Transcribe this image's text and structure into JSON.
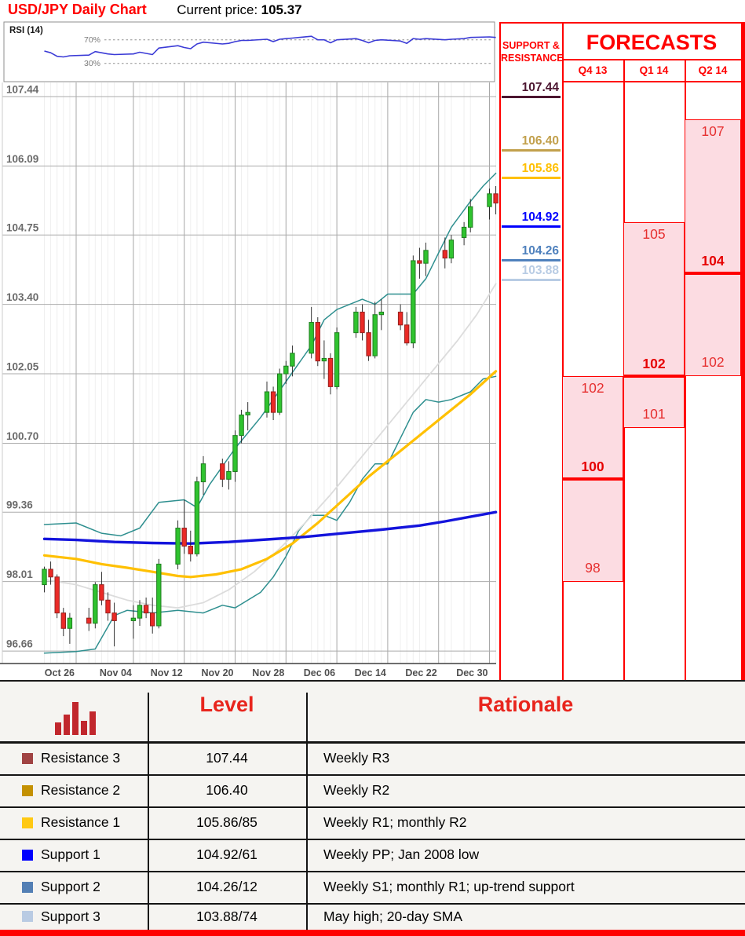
{
  "header": {
    "title": "USD/JPY Daily Chart",
    "current_price_label": "Current price:",
    "current_price": "105.37"
  },
  "rsi_panel": {
    "label": "RSI (14)",
    "upper_label": "70%",
    "lower_label": "30%"
  },
  "chart_data": {
    "type": "candlestick",
    "title": "USD/JPY Daily Chart",
    "ylim": [
      96.0,
      107.44
    ],
    "y_axis_labels": [
      "107.44",
      "106.09",
      "104.75",
      "103.40",
      "102.05",
      "100.70",
      "99.36",
      "98.01",
      "96.66"
    ],
    "x_axis_labels": [
      "Oct 26",
      "Nov 04",
      "Nov 12",
      "Nov 20",
      "Nov 28",
      "Dec 06",
      "Dec 14",
      "Dec 22",
      "Dec 30"
    ],
    "candles": [
      [
        "Oct 21",
        97.95,
        98.3,
        97.8,
        98.25
      ],
      [
        "Oct 22",
        98.25,
        98.4,
        97.95,
        98.1
      ],
      [
        "Oct 23",
        98.1,
        98.15,
        97.3,
        97.4
      ],
      [
        "Oct 24",
        97.4,
        97.5,
        96.95,
        97.1
      ],
      [
        "Oct 25",
        97.1,
        97.4,
        96.8,
        97.3
      ],
      [
        "Oct 28",
        97.3,
        97.5,
        97.05,
        97.2
      ],
      [
        "Oct 29",
        97.2,
        98.0,
        97.1,
        97.95
      ],
      [
        "Oct 30",
        97.95,
        98.2,
        97.55,
        97.65
      ],
      [
        "Oct 31",
        97.65,
        97.8,
        97.25,
        97.4
      ],
      [
        "Nov 01",
        97.4,
        97.6,
        96.75,
        97.25
      ],
      [
        "Nov 04",
        97.25,
        97.55,
        96.9,
        97.3
      ],
      [
        "Nov 05",
        97.3,
        97.65,
        97.15,
        97.55
      ],
      [
        "Nov 06",
        97.55,
        97.7,
        97.3,
        97.4
      ],
      [
        "Nov 07",
        97.4,
        97.7,
        97.0,
        97.15
      ],
      [
        "Nov 08",
        97.15,
        98.45,
        97.1,
        98.35
      ],
      [
        "Nov 11",
        98.35,
        99.2,
        98.25,
        99.05
      ],
      [
        "Nov 12",
        99.05,
        99.6,
        98.55,
        98.7
      ],
      [
        "Nov 13",
        98.7,
        99.0,
        98.4,
        98.55
      ],
      [
        "Nov 14",
        98.55,
        100.05,
        98.5,
        99.95
      ],
      [
        "Nov 15",
        99.95,
        100.45,
        99.7,
        100.3
      ],
      [
        "Nov 18",
        100.3,
        100.4,
        99.85,
        100.0
      ],
      [
        "Nov 19",
        100.0,
        100.35,
        99.8,
        100.15
      ],
      [
        "Nov 20",
        100.15,
        100.95,
        99.95,
        100.85
      ],
      [
        "Nov 21",
        100.85,
        101.35,
        100.7,
        101.25
      ],
      [
        "Nov 22",
        101.25,
        101.5,
        100.95,
        101.3
      ],
      [
        "Nov 25",
        101.3,
        101.9,
        101.2,
        101.7
      ],
      [
        "Nov 26",
        101.7,
        101.8,
        101.15,
        101.3
      ],
      [
        "Nov 27",
        101.3,
        102.15,
        101.25,
        102.05
      ],
      [
        "Nov 28",
        102.05,
        102.3,
        101.85,
        102.2
      ],
      [
        "Nov 29",
        102.2,
        102.6,
        102.0,
        102.45
      ],
      [
        "Dec 02",
        102.45,
        103.35,
        102.35,
        103.05
      ],
      [
        "Dec 03",
        103.05,
        103.15,
        102.2,
        102.3
      ],
      [
        "Dec 04",
        102.3,
        102.7,
        101.95,
        102.35
      ],
      [
        "Dec 05",
        102.35,
        102.45,
        101.65,
        101.8
      ],
      [
        "Dec 06",
        101.8,
        102.95,
        101.75,
        102.85
      ],
      [
        "Dec 09",
        102.85,
        103.35,
        102.75,
        103.25
      ],
      [
        "Dec 10",
        103.25,
        103.4,
        102.7,
        102.85
      ],
      [
        "Dec 11",
        102.85,
        103.1,
        102.3,
        102.4
      ],
      [
        "Dec 12",
        102.4,
        103.45,
        102.35,
        103.2
      ],
      [
        "Dec 13",
        103.2,
        103.5,
        102.9,
        103.25
      ],
      [
        "Dec 16",
        103.25,
        103.4,
        102.9,
        103.0
      ],
      [
        "Dec 17",
        103.0,
        103.25,
        102.6,
        102.65
      ],
      [
        "Dec 18",
        102.65,
        104.35,
        102.55,
        104.25
      ],
      [
        "Dec 19",
        104.25,
        104.5,
        103.9,
        104.2
      ],
      [
        "Dec 20",
        104.2,
        104.6,
        103.95,
        104.45
      ],
      [
        "Dec 23",
        104.45,
        104.7,
        104.1,
        104.3
      ],
      [
        "Dec 24",
        104.3,
        104.75,
        104.2,
        104.65
      ],
      [
        "Dec 26",
        104.7,
        105.0,
        104.55,
        104.9
      ],
      [
        "Dec 27",
        104.9,
        105.45,
        104.8,
        105.3
      ],
      [
        "Dec 30",
        105.3,
        105.65,
        105.05,
        105.55
      ],
      [
        "Dec 31",
        105.55,
        105.7,
        105.15,
        105.37
      ]
    ],
    "rsi": {
      "period": 14,
      "guide_upper": 70,
      "guide_lower": 30,
      "values": [
        51,
        48,
        42,
        41,
        43,
        44,
        50,
        48,
        46,
        45,
        46,
        49,
        47,
        45,
        56,
        60,
        57,
        55,
        63,
        66,
        63,
        64,
        67,
        69,
        69,
        71,
        67,
        71,
        72,
        73,
        76,
        70,
        70,
        65,
        70,
        72,
        69,
        65,
        69,
        70,
        68,
        64,
        72,
        71,
        72,
        70,
        71,
        72,
        74,
        75,
        74
      ]
    },
    "overlays": [
      {
        "name": "upper-band",
        "color": "#2e8f8f",
        "width": 1.5,
        "points": [
          [
            "Oct 21",
            99.12
          ],
          [
            "Oct 26",
            99.15
          ],
          [
            "Oct 30",
            98.95
          ],
          [
            "Nov 02",
            98.9
          ],
          [
            "Nov 05",
            99.05
          ],
          [
            "Nov 08",
            99.55
          ],
          [
            "Nov 12",
            99.6
          ],
          [
            "Nov 14",
            99.45
          ],
          [
            "Nov 16",
            99.9
          ],
          [
            "Nov 20",
            100.6
          ],
          [
            "Nov 24",
            101.2
          ],
          [
            "Nov 28",
            101.9
          ],
          [
            "Dec 02",
            102.6
          ],
          [
            "Dec 04",
            103.1
          ],
          [
            "Dec 06",
            103.3
          ],
          [
            "Dec 10",
            103.5
          ],
          [
            "Dec 12",
            103.4
          ],
          [
            "Dec 14",
            103.6
          ],
          [
            "Dec 18",
            103.6
          ],
          [
            "Dec 20",
            103.9
          ],
          [
            "Dec 22",
            104.4
          ],
          [
            "Dec 24",
            104.9
          ],
          [
            "Dec 27",
            105.4
          ],
          [
            "Dec 29",
            105.7
          ],
          [
            "Dec 31",
            105.95
          ]
        ]
      },
      {
        "name": "lower-band",
        "color": "#2e8f8f",
        "width": 1.5,
        "points": [
          [
            "Oct 21",
            96.62
          ],
          [
            "Oct 26",
            96.65
          ],
          [
            "Oct 29",
            96.7
          ],
          [
            "Nov 01",
            97.35
          ],
          [
            "Nov 03",
            97.45
          ],
          [
            "Nov 07",
            97.4
          ],
          [
            "Nov 11",
            97.45
          ],
          [
            "Nov 15",
            97.4
          ],
          [
            "Nov 18",
            97.55
          ],
          [
            "Nov 20",
            97.5
          ],
          [
            "Nov 24",
            97.8
          ],
          [
            "Nov 26",
            98.1
          ],
          [
            "Nov 28",
            98.5
          ],
          [
            "Nov 30",
            99.0
          ],
          [
            "Dec 02",
            99.3
          ],
          [
            "Dec 04",
            99.3
          ],
          [
            "Dec 06",
            99.2
          ],
          [
            "Dec 08",
            99.55
          ],
          [
            "Dec 10",
            100.0
          ],
          [
            "Dec 12",
            100.3
          ],
          [
            "Dec 14",
            100.3
          ],
          [
            "Dec 16",
            100.8
          ],
          [
            "Dec 18",
            101.3
          ],
          [
            "Dec 20",
            101.55
          ],
          [
            "Dec 22",
            101.5
          ],
          [
            "Dec 24",
            101.55
          ],
          [
            "Dec 27",
            101.7
          ],
          [
            "Dec 29",
            101.95
          ],
          [
            "Dec 31",
            102.0
          ]
        ]
      },
      {
        "name": "20-day-sma",
        "color": "#dcdcdc",
        "width": 1.8,
        "points": [
          [
            "Oct 21",
            98.05
          ],
          [
            "Oct 26",
            97.95
          ],
          [
            "Oct 30",
            97.8
          ],
          [
            "Nov 03",
            97.65
          ],
          [
            "Nov 07",
            97.55
          ],
          [
            "Nov 11",
            97.5
          ],
          [
            "Nov 15",
            97.6
          ],
          [
            "Nov 19",
            97.85
          ],
          [
            "Nov 23",
            98.2
          ],
          [
            "Nov 27",
            98.65
          ],
          [
            "Dec 01",
            99.15
          ],
          [
            "Dec 05",
            99.7
          ],
          [
            "Dec 09",
            100.3
          ],
          [
            "Dec 13",
            100.9
          ],
          [
            "Dec 17",
            101.5
          ],
          [
            "Dec 21",
            102.1
          ],
          [
            "Dec 25",
            102.7
          ],
          [
            "Dec 28",
            103.2
          ],
          [
            "Dec 31",
            103.8
          ]
        ]
      },
      {
        "name": "55-day-sma",
        "color": "#ffc000",
        "width": 3.2,
        "points": [
          [
            "Oct 21",
            98.52
          ],
          [
            "Oct 26",
            98.45
          ],
          [
            "Oct 30",
            98.35
          ],
          [
            "Nov 03",
            98.28
          ],
          [
            "Nov 07",
            98.2
          ],
          [
            "Nov 11",
            98.12
          ],
          [
            "Nov 13",
            98.1
          ],
          [
            "Nov 17",
            98.15
          ],
          [
            "Nov 21",
            98.25
          ],
          [
            "Nov 25",
            98.45
          ],
          [
            "Nov 29",
            98.75
          ],
          [
            "Dec 03",
            99.15
          ],
          [
            "Dec 07",
            99.6
          ],
          [
            "Dec 11",
            100.05
          ],
          [
            "Dec 15",
            100.45
          ],
          [
            "Dec 19",
            100.85
          ],
          [
            "Dec 23",
            101.25
          ],
          [
            "Dec 27",
            101.65
          ],
          [
            "Dec 31",
            102.1
          ]
        ]
      },
      {
        "name": "200-day-sma",
        "color": "#1414dc",
        "width": 3.4,
        "points": [
          [
            "Oct 21",
            98.84
          ],
          [
            "Oct 26",
            98.82
          ],
          [
            "Nov 01",
            98.78
          ],
          [
            "Nov 07",
            98.76
          ],
          [
            "Nov 13",
            98.75
          ],
          [
            "Nov 19",
            98.78
          ],
          [
            "Nov 25",
            98.83
          ],
          [
            "Dec 01",
            98.88
          ],
          [
            "Dec 07",
            98.95
          ],
          [
            "Dec 13",
            99.02
          ],
          [
            "Dec 19",
            99.1
          ],
          [
            "Dec 23",
            99.18
          ],
          [
            "Dec 27",
            99.27
          ],
          [
            "Dec 31",
            99.36
          ]
        ]
      }
    ],
    "candle_colors": {
      "up_fill": "#2fc32f",
      "up_stroke": "#1e7d1e",
      "down_fill": "#ea2a26",
      "down_stroke": "#97211e"
    }
  },
  "sr_panel": {
    "header_line1": "SUPPORT &",
    "header_line2": "RESISTANCE",
    "levels": [
      {
        "value": "107.44",
        "price": 107.44,
        "color": "#4c1630"
      },
      {
        "value": "106.40",
        "price": 106.4,
        "color": "#c2a04c"
      },
      {
        "value": "105.86",
        "price": 105.86,
        "color": "#ffc000"
      },
      {
        "value": "104.92",
        "price": 104.92,
        "color": "#0000fe"
      },
      {
        "value": "104.26",
        "price": 104.26,
        "color": "#4f81bd"
      },
      {
        "value": "103.88",
        "price": 103.88,
        "color": "#b8cce4"
      }
    ]
  },
  "forecasts": {
    "header": "FORECASTS",
    "box_fill": "#fcdce2",
    "accent": "#ff0000",
    "columns": [
      {
        "label": "Q4 13",
        "high": 102,
        "low": 98,
        "point": 100
      },
      {
        "label": "Q1 14",
        "high": 105,
        "low": 101,
        "point": 102
      },
      {
        "label": "Q2 14",
        "high": 107,
        "low": 102,
        "point": 104
      }
    ]
  },
  "table": {
    "icon": "bar-chart-icon",
    "headers": {
      "level": "Level",
      "rationale": "Rationale"
    },
    "rows": [
      {
        "label": "Resistance 3",
        "swatch_color": "#a04343",
        "level": "107.44",
        "rationale": "Weekly R3"
      },
      {
        "label": "Resistance 2",
        "swatch_color": "#c49102",
        "level": "106.40",
        "rationale": "Weekly R2"
      },
      {
        "label": "Resistance 1",
        "swatch_color": "#ffc913",
        "level": "105.86/85",
        "rationale": "Weekly R1; monthly R2"
      },
      {
        "label": "Support 1",
        "swatch_color": "#0000fe",
        "level": "104.92/61",
        "rationale": "Weekly PP; Jan 2008 low"
      },
      {
        "label": "Support 2",
        "swatch_color": "#537fb4",
        "level": "104.26/12",
        "rationale": "Weekly S1; monthly R1; up-trend support"
      },
      {
        "label": "Support 3",
        "swatch_color": "#b9cbe3",
        "level": "103.88/74",
        "rationale": "May high; 20-day SMA"
      }
    ]
  }
}
